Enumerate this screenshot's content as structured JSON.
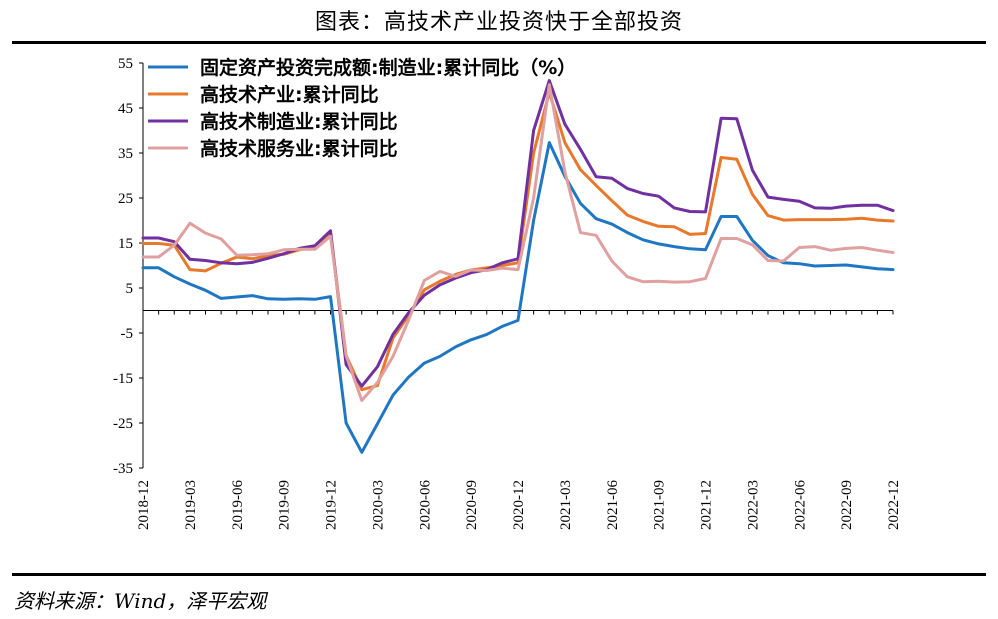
{
  "title": "图表：高技术产业投资快于全部投资",
  "source": "资料来源：Wind，泽平宏观",
  "chart_data": {
    "type": "line",
    "ylim": [
      -35,
      55
    ],
    "yticks": [
      55,
      45,
      35,
      25,
      15,
      5,
      -5,
      -15,
      -25,
      -35
    ],
    "xtick_labels": [
      "2018-12",
      "2019-03",
      "2019-06",
      "2019-09",
      "2019-12",
      "2020-03",
      "2020-06",
      "2020-09",
      "2020-12",
      "2021-03",
      "2021-06",
      "2021-09",
      "2021-12",
      "2022-03",
      "2022-06",
      "2022-09",
      "2022-12"
    ],
    "x": [
      "2018-12",
      "2019-01",
      "2019-02",
      "2019-03",
      "2019-04",
      "2019-05",
      "2019-06",
      "2019-07",
      "2019-08",
      "2019-09",
      "2019-10",
      "2019-11",
      "2019-12",
      "2020-01",
      "2020-02",
      "2020-03",
      "2020-04",
      "2020-05",
      "2020-06",
      "2020-07",
      "2020-08",
      "2020-09",
      "2020-10",
      "2020-11",
      "2020-12",
      "2021-01",
      "2021-02",
      "2021-03",
      "2021-04",
      "2021-05",
      "2021-06",
      "2021-07",
      "2021-08",
      "2021-09",
      "2021-10",
      "2021-11",
      "2021-12",
      "2022-01",
      "2022-02",
      "2022-03",
      "2022-04",
      "2022-05",
      "2022-06",
      "2022-07",
      "2022-08",
      "2022-09",
      "2022-10",
      "2022-11",
      "2022-12"
    ],
    "legend_position": "top-left",
    "grid": false,
    "series": [
      {
        "name": "固定资产投资完成额:制造业:累计同比（%）",
        "color": "#1f77c4",
        "values": [
          9.5,
          9.5,
          7.5,
          5.9,
          4.5,
          2.7,
          3.0,
          3.3,
          2.6,
          2.5,
          2.6,
          2.5,
          3.1,
          -25,
          -31.5,
          -25.2,
          -18.8,
          -14.8,
          -11.7,
          -10.2,
          -8.1,
          -6.5,
          -5.3,
          -3.5,
          -2.2,
          20,
          37.3,
          29.8,
          23.8,
          20.4,
          19.2,
          17.3,
          15.7,
          14.8,
          14.2,
          13.7,
          13.5,
          20.9,
          20.9,
          15.6,
          12.2,
          10.6,
          10.4,
          9.9,
          10.0,
          10.1,
          9.7,
          9.3,
          9.1
        ]
      },
      {
        "name": "高技术产业:累计同比",
        "color": "#e8782a",
        "values": [
          14.9,
          14.9,
          14.5,
          9.1,
          8.8,
          10.5,
          11.9,
          11.5,
          12.2,
          12.5,
          13.5,
          14.2,
          17.3,
          -10,
          -17.6,
          -16.7,
          -6.1,
          -1.1,
          4.6,
          6.5,
          8.0,
          9.0,
          9.5,
          10.0,
          10.6,
          35,
          48.5,
          37.3,
          31.3,
          27.8,
          24.4,
          21.2,
          19.8,
          18.7,
          18.6,
          16.9,
          17.1,
          34.0,
          33.6,
          25.8,
          21.1,
          20.1,
          20.2,
          20.2,
          20.2,
          20.3,
          20.5,
          20.1,
          19.9
        ]
      },
      {
        "name": "高技术制造业:累计同比",
        "color": "#7030a0",
        "values": [
          16.1,
          16.1,
          15.3,
          11.4,
          11.1,
          10.6,
          10.4,
          10.7,
          11.6,
          12.6,
          13.8,
          14.4,
          17.7,
          -12,
          -16.8,
          -12.5,
          -5.3,
          -0.5,
          3.4,
          5.7,
          7.2,
          8.4,
          9.1,
          10.6,
          11.5,
          40,
          51.1,
          41.4,
          35.8,
          29.7,
          29.4,
          27.1,
          26.0,
          25.4,
          22.8,
          22.0,
          21.9,
          42.7,
          42.6,
          31.2,
          25.2,
          24.7,
          24.3,
          22.8,
          22.7,
          23.2,
          23.4,
          23.4,
          22.2
        ]
      },
      {
        "name": "高技术服务业:累计同比",
        "color": "#e0a0a0",
        "values": [
          11.9,
          11.9,
          14.5,
          19.4,
          17.2,
          15.9,
          12.3,
          12.4,
          12.6,
          13.5,
          13.6,
          13.6,
          16.5,
          -10,
          -20.0,
          -16.0,
          -10.2,
          -2.1,
          6.7,
          8.7,
          7.6,
          9.0,
          8.9,
          9.4,
          9.1,
          25,
          50.2,
          30.8,
          17.3,
          16.7,
          11.0,
          7.5,
          6.4,
          6.5,
          6.3,
          6.4,
          7.1,
          16.0,
          16.0,
          14.6,
          11.1,
          11.0,
          14.0,
          14.2,
          13.4,
          13.8,
          14.0,
          13.4,
          12.9
        ]
      }
    ]
  }
}
